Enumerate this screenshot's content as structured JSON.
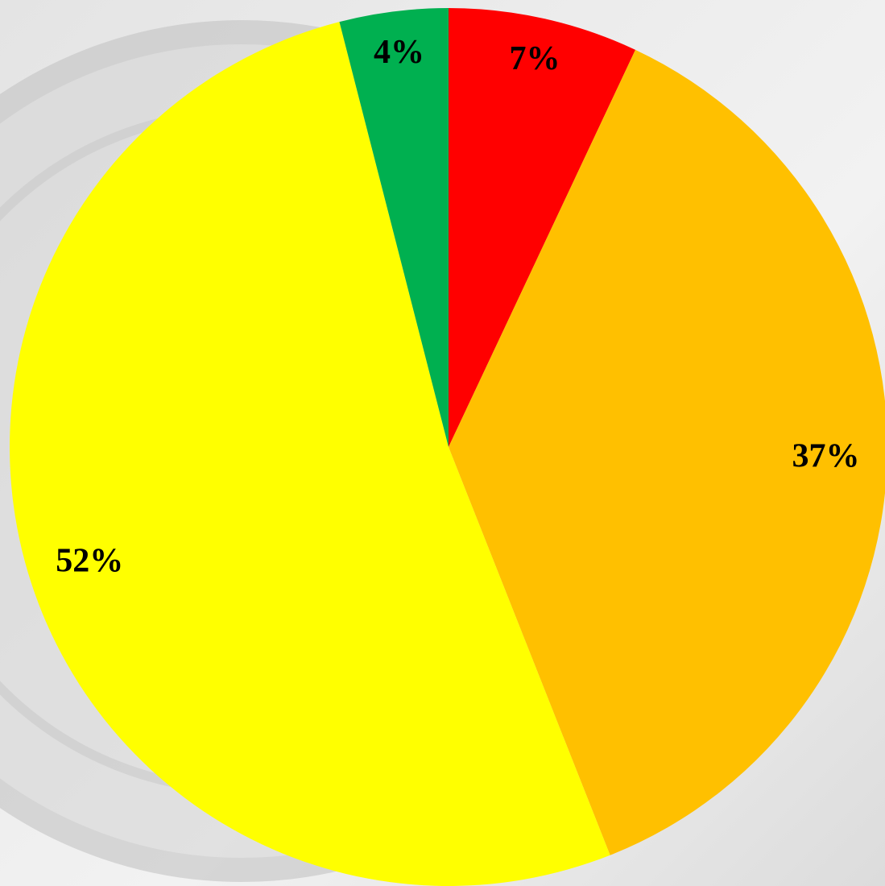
{
  "chart_data": {
    "type": "pie",
    "values": [
      7,
      37,
      52,
      4
    ],
    "value_labels": [
      "7%",
      "37%",
      "52%",
      "4%"
    ],
    "colors": [
      "#ff0000",
      "#ffc000",
      "#ffff00",
      "#00b050"
    ]
  }
}
